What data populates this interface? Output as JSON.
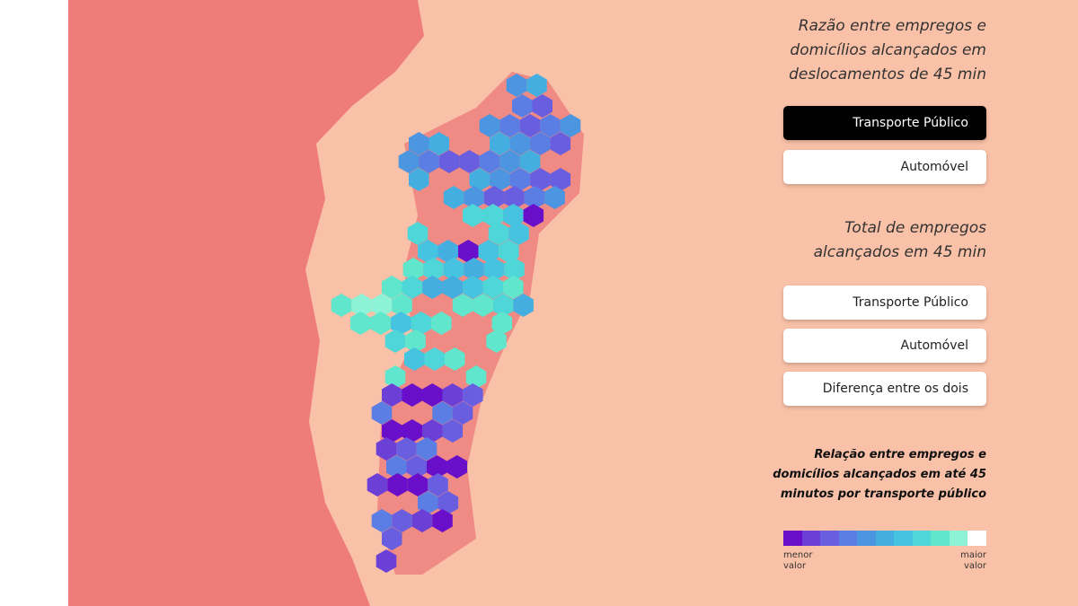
{
  "panel": {
    "sections": [
      {
        "title": "Razão entre empregos e domicílios alcançados em deslocamentos de 45 min",
        "buttons": [
          "Transporte Público",
          "Automóvel"
        ]
      },
      {
        "title": "Total de empregos alcançados em 45 min",
        "buttons": [
          "Transporte Público",
          "Automóvel",
          "Diferença entre os dois"
        ]
      }
    ]
  },
  "legend": {
    "title": "Relação entre empregos e domicílios alcançados em até 45 minutos por transporte público",
    "colors": [
      "#6a0fc9",
      "#6c3fd6",
      "#6a5ee0",
      "#5a7ee3",
      "#4c95e0",
      "#45aee0",
      "#46c3e0",
      "#4fd6d8",
      "#5fe6cc",
      "#8ef2d6",
      "#ffffff"
    ],
    "low_label": "menor valor",
    "high_label": "maior valor"
  }
}
